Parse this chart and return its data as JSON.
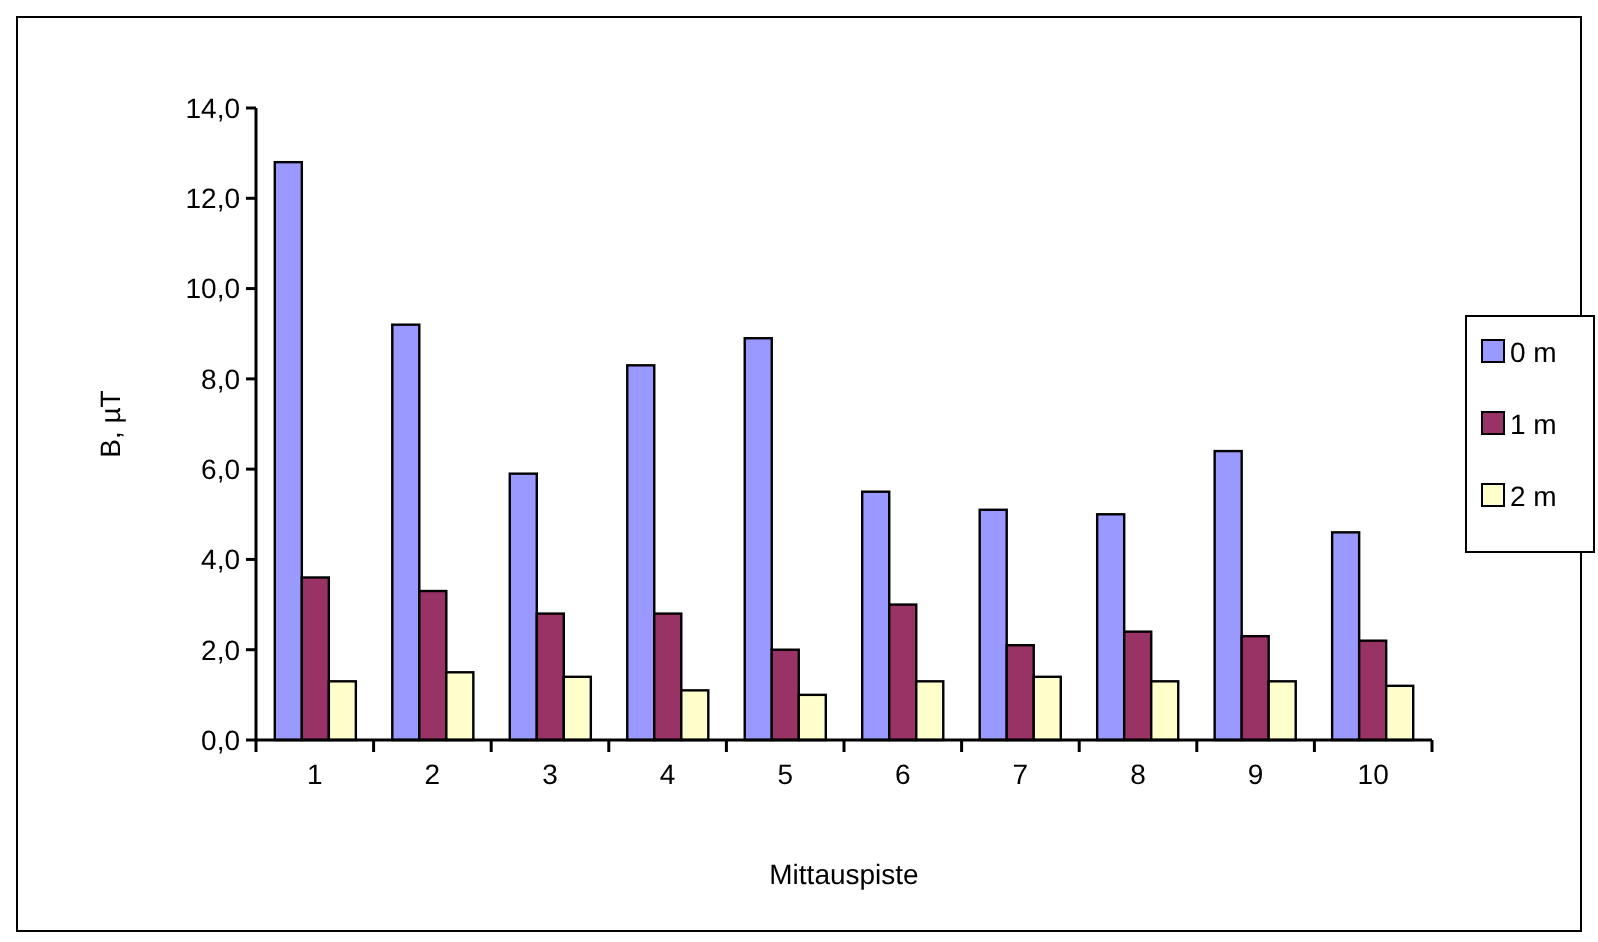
{
  "chart_data": {
    "type": "bar",
    "xlabel": "Mittauspiste",
    "ylabel": "B, µT",
    "categories": [
      "1",
      "2",
      "3",
      "4",
      "5",
      "6",
      "7",
      "8",
      "9",
      "10"
    ],
    "series": [
      {
        "name": "0 m",
        "color": "#9999ff",
        "values": [
          12.8,
          9.2,
          5.9,
          8.3,
          8.9,
          5.5,
          5.1,
          5.0,
          6.4,
          4.6
        ]
      },
      {
        "name": "1 m",
        "color": "#993366",
        "values": [
          3.6,
          3.3,
          2.8,
          2.8,
          2.0,
          3.0,
          2.1,
          2.4,
          2.3,
          2.2
        ]
      },
      {
        "name": "2 m",
        "color": "#ffffcc",
        "values": [
          1.3,
          1.5,
          1.4,
          1.1,
          1.0,
          1.3,
          1.4,
          1.3,
          1.3,
          1.2
        ]
      }
    ],
    "ylim": [
      0,
      14
    ],
    "yticks": [
      {
        "value": 0,
        "label": "0,0"
      },
      {
        "value": 2,
        "label": "2,0"
      },
      {
        "value": 4,
        "label": "4,0"
      },
      {
        "value": 6,
        "label": "6,0"
      },
      {
        "value": 8,
        "label": "8,0"
      },
      {
        "value": 10,
        "label": "10,0"
      },
      {
        "value": 12,
        "label": "12,0"
      },
      {
        "value": 14,
        "label": "14,0"
      }
    ],
    "grid": false,
    "legend": "right"
  }
}
